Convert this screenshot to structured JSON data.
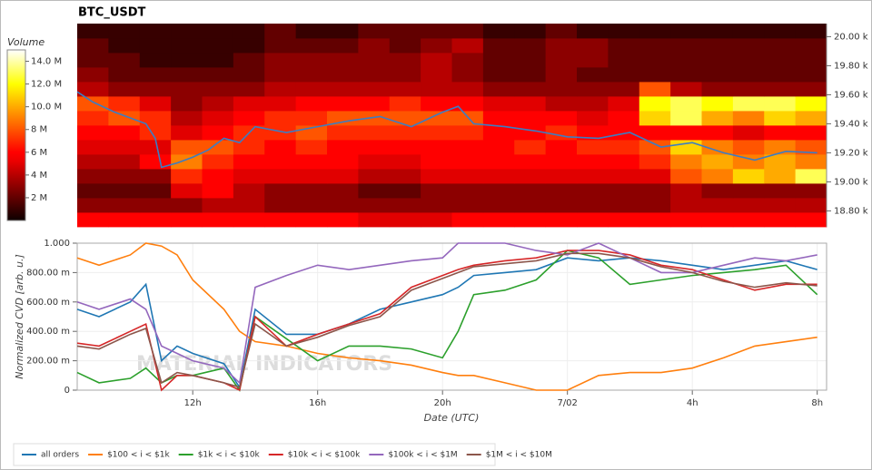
{
  "chart_data": [
    {
      "type": "heatmap",
      "title": "BTC_USDT",
      "xlim": [
        8.3,
        32.3
      ],
      "ylim": [
        18690,
        20090
      ],
      "time_bins": [
        8.3,
        9.3,
        10.3,
        11.3,
        12.3,
        13.3,
        14.3,
        15.3,
        16.3,
        17.3,
        18.3,
        19.3,
        20.3,
        21.3,
        22.3,
        23.3,
        24.3,
        25.3,
        26.3,
        27.3,
        28.3,
        29.3,
        30.3,
        31.3,
        32.3
      ],
      "price_bins": [
        18690,
        18790,
        18890,
        18990,
        19090,
        19190,
        19290,
        19390,
        19490,
        19590,
        19690,
        19790,
        19890,
        19990,
        20090
      ],
      "volume": [
        [
          6,
          6,
          6,
          6,
          6,
          6,
          6,
          6,
          6,
          5,
          5,
          5,
          6,
          6,
          6,
          6,
          6,
          6,
          6,
          6,
          6,
          6,
          6,
          6
        ],
        [
          3,
          3,
          3,
          3,
          4,
          4,
          3,
          3,
          3,
          3,
          3,
          3,
          3,
          3,
          3,
          3,
          3,
          3,
          3,
          4,
          4,
          4,
          4,
          4
        ],
        [
          2,
          2,
          2,
          5,
          6,
          4,
          3,
          3,
          3,
          2,
          2,
          3,
          3,
          3,
          3,
          3,
          3,
          3,
          3,
          4,
          3,
          3,
          3,
          3
        ],
        [
          3,
          3,
          3,
          7,
          6,
          5,
          5,
          5,
          5,
          4,
          4,
          5,
          5,
          5,
          5,
          5,
          5,
          5,
          5,
          8,
          9,
          11,
          10,
          13
        ],
        [
          4,
          4,
          6,
          9,
          7,
          6,
          6,
          6,
          6,
          5,
          5,
          6,
          6,
          6,
          6,
          6,
          6,
          6,
          7,
          9,
          10,
          9,
          10,
          9
        ],
        [
          5,
          5,
          5,
          8,
          8,
          7,
          6,
          7,
          6,
          6,
          6,
          6,
          6,
          6,
          7,
          6,
          7,
          7,
          8,
          11,
          9,
          8,
          9,
          8
        ],
        [
          6,
          6,
          7,
          5,
          6,
          7,
          7,
          8,
          7,
          7,
          7,
          7,
          7,
          6,
          6,
          7,
          6,
          6,
          6,
          6,
          6,
          5,
          6,
          6
        ],
        [
          7,
          8,
          7,
          4,
          5,
          6,
          7,
          7,
          8,
          8,
          8,
          8,
          8,
          6,
          6,
          6,
          5,
          6,
          11,
          13,
          10,
          9,
          11,
          10
        ],
        [
          8,
          7,
          5,
          3,
          4,
          5,
          5,
          6,
          6,
          6,
          7,
          6,
          6,
          5,
          5,
          4,
          4,
          5,
          12,
          13,
          12,
          13,
          13,
          12
        ],
        [
          4,
          3,
          3,
          3,
          3,
          3,
          4,
          4,
          4,
          4,
          4,
          4,
          4,
          3,
          3,
          3,
          3,
          3,
          8,
          4,
          3,
          3,
          3,
          3
        ],
        [
          3,
          2,
          2,
          2,
          2,
          2,
          3,
          3,
          3,
          3,
          3,
          4,
          3,
          2,
          2,
          3,
          2,
          2,
          2,
          2,
          2,
          2,
          2,
          2
        ],
        [
          2,
          2,
          1,
          1,
          1,
          2,
          3,
          3,
          3,
          3,
          3,
          4,
          3,
          2,
          2,
          3,
          3,
          2,
          2,
          2,
          2,
          2,
          2,
          2
        ],
        [
          2,
          1,
          1,
          1,
          1,
          1,
          2,
          2,
          2,
          3,
          2,
          3,
          4,
          2,
          2,
          3,
          3,
          2,
          2,
          2,
          2,
          2,
          2,
          2
        ],
        [
          1,
          1,
          1,
          1,
          1,
          1,
          2,
          1,
          1,
          2,
          2,
          2,
          2,
          1,
          1,
          2,
          1,
          1,
          1,
          1,
          1,
          1,
          1,
          1
        ]
      ],
      "colorbar": {
        "label": "Volume",
        "clim": [
          0,
          15
        ],
        "ticks": [
          {
            "value": 2,
            "label": "2 M"
          },
          {
            "value": 4,
            "label": "4 M"
          },
          {
            "value": 6,
            "label": "6 M"
          },
          {
            "value": 8,
            "label": "8 M"
          },
          {
            "value": 10,
            "label": "10.0 M"
          },
          {
            "value": 12,
            "label": "12.0 M"
          },
          {
            "value": 14,
            "label": "14.0 M"
          }
        ]
      },
      "price": {
        "color": "#3b7dc4",
        "x": [
          8.3,
          8.8,
          9.5,
          10,
          10.5,
          10.8,
          11,
          11.5,
          12,
          12.5,
          13,
          13.5,
          14,
          15,
          16,
          17,
          18,
          19,
          20,
          20.5,
          21,
          22,
          23,
          24,
          25,
          26,
          27,
          28,
          29,
          30,
          31,
          32
        ],
        "values": [
          19620,
          19550,
          19480,
          19440,
          19400,
          19300,
          19100,
          19130,
          19170,
          19220,
          19300,
          19270,
          19380,
          19340,
          19380,
          19420,
          19450,
          19380,
          19480,
          19520,
          19400,
          19380,
          19350,
          19310,
          19300,
          19340,
          19240,
          19270,
          19200,
          19150,
          19210,
          19200
        ]
      },
      "yticks": [
        {
          "value": 18800,
          "label": "18.80 k"
        },
        {
          "value": 19000,
          "label": "19.00 k"
        },
        {
          "value": 19200,
          "label": "19.20 k"
        },
        {
          "value": 19400,
          "label": "19.40 k"
        },
        {
          "value": 19600,
          "label": "19.60 k"
        },
        {
          "value": 19800,
          "label": "19.80 k"
        },
        {
          "value": 20000,
          "label": "20.00 k"
        }
      ]
    },
    {
      "type": "line",
      "ylabel": "Normalized CVD [arb. u.]",
      "xlabel": "Date (UTC)",
      "watermark": "MATERIAL INDICATORS",
      "xlim": [
        8.3,
        32.3
      ],
      "ylim": [
        0,
        1
      ],
      "grid": true,
      "legend": "bottom",
      "xticks": [
        {
          "value": 12,
          "label": "12h"
        },
        {
          "value": 16,
          "label": "16h"
        },
        {
          "value": 20,
          "label": "20h"
        },
        {
          "value": 24,
          "label": "7/02"
        },
        {
          "value": 28,
          "label": "4h"
        },
        {
          "value": 32,
          "label": "8h"
        }
      ],
      "yticks": [
        0,
        {
          "value": 0.2,
          "label": "200.00 m"
        },
        {
          "value": 0.4,
          "label": "400.00 m"
        },
        {
          "value": 0.6,
          "label": "600.00 m"
        },
        {
          "value": 0.8,
          "label": "800.00 m"
        },
        {
          "value": 1,
          "label": "1.000"
        }
      ],
      "x": [
        8.3,
        9,
        10,
        10.5,
        11,
        11.5,
        12,
        13,
        13.5,
        14,
        15,
        16,
        17,
        18,
        19,
        20,
        20.5,
        21,
        22,
        23,
        24,
        25,
        26,
        27,
        28,
        29,
        30,
        31,
        32
      ],
      "series": [
        {
          "name": "all orders",
          "color": "#1f77b4",
          "values": [
            0.55,
            0.5,
            0.6,
            0.72,
            0.2,
            0.3,
            0.25,
            0.18,
            0.02,
            0.55,
            0.38,
            0.38,
            0.45,
            0.55,
            0.6,
            0.65,
            0.7,
            0.78,
            0.8,
            0.82,
            0.9,
            0.88,
            0.9,
            0.88,
            0.85,
            0.82,
            0.85,
            0.88,
            0.82
          ]
        },
        {
          "name": "$100 < i < $1k",
          "color": "#ff7f0e",
          "values": [
            0.9,
            0.85,
            0.92,
            1.0,
            0.98,
            0.92,
            0.75,
            0.55,
            0.4,
            0.33,
            0.3,
            0.25,
            0.22,
            0.2,
            0.17,
            0.12,
            0.1,
            0.1,
            0.05,
            0.0,
            0.0,
            0.1,
            0.12,
            0.12,
            0.15,
            0.22,
            0.3,
            0.33,
            0.36
          ]
        },
        {
          "name": "$1k < i < $10k",
          "color": "#2ca02c",
          "values": [
            0.12,
            0.05,
            0.08,
            0.15,
            0.05,
            0.1,
            0.1,
            0.15,
            0.0,
            0.5,
            0.35,
            0.2,
            0.3,
            0.3,
            0.28,
            0.22,
            0.4,
            0.65,
            0.68,
            0.75,
            0.95,
            0.9,
            0.72,
            0.75,
            0.78,
            0.8,
            0.82,
            0.85,
            0.65
          ]
        },
        {
          "name": "$10k < i < $100k",
          "color": "#d62728",
          "values": [
            0.32,
            0.3,
            0.4,
            0.45,
            0.0,
            0.1,
            0.1,
            0.05,
            0.0,
            0.5,
            0.3,
            0.38,
            0.45,
            0.52,
            0.7,
            0.78,
            0.82,
            0.85,
            0.88,
            0.9,
            0.95,
            0.95,
            0.92,
            0.85,
            0.82,
            0.75,
            0.68,
            0.72,
            0.72
          ]
        },
        {
          "name": "$100k < i < $1M",
          "color": "#9467bd",
          "values": [
            0.6,
            0.55,
            0.62,
            0.55,
            0.3,
            0.25,
            0.2,
            0.15,
            0.05,
            0.7,
            0.78,
            0.85,
            0.82,
            0.85,
            0.88,
            0.9,
            1.0,
            1.0,
            1.0,
            0.95,
            0.92,
            1.0,
            0.9,
            0.8,
            0.8,
            0.85,
            0.9,
            0.88,
            0.92
          ]
        },
        {
          "name": "$1M < i < $10M",
          "color": "#8c564b",
          "values": [
            0.3,
            0.28,
            0.38,
            0.42,
            0.05,
            0.12,
            0.1,
            0.05,
            0.02,
            0.45,
            0.3,
            0.36,
            0.44,
            0.5,
            0.68,
            0.76,
            0.8,
            0.84,
            0.86,
            0.88,
            0.93,
            0.93,
            0.9,
            0.84,
            0.8,
            0.74,
            0.7,
            0.73,
            0.71
          ]
        }
      ]
    }
  ]
}
